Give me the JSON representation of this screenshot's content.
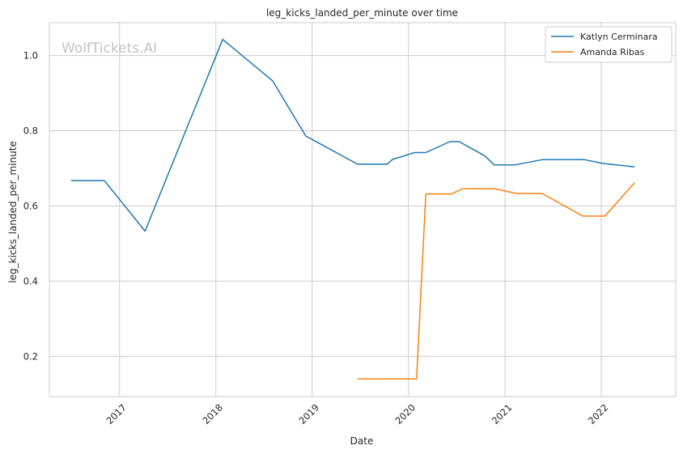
{
  "chart_data": {
    "type": "line",
    "title": "leg_kicks_landed_per_minute over time",
    "xlabel": "Date",
    "ylabel": "leg_kicks_landed_per_minute",
    "watermark": "WolfTickets.AI",
    "x_ticks": [
      "2017",
      "2018",
      "2019",
      "2020",
      "2021",
      "2022"
    ],
    "y_ticks": [
      "0.2",
      "0.4",
      "0.6",
      "0.8",
      "1.0"
    ],
    "xlim": [
      "2016-04-10",
      "2022-10-10"
    ],
    "ylim": [
      0.093,
      1.0875
    ],
    "grid": true,
    "legend_position": "top-right",
    "series": [
      {
        "name": "Katlyn Cerminara",
        "color": "#1f77b4",
        "points": [
          [
            "2016-07-01",
            0.667
          ],
          [
            "2016-11-05",
            0.667
          ],
          [
            "2017-04-08",
            0.533
          ],
          [
            "2018-01-27",
            1.043
          ],
          [
            "2018-08-04",
            0.933
          ],
          [
            "2018-12-08",
            0.786
          ],
          [
            "2019-06-22",
            0.711
          ],
          [
            "2019-10-12",
            0.711
          ],
          [
            "2019-11-02",
            0.724
          ],
          [
            "2020-01-25",
            0.742
          ],
          [
            "2020-03-07",
            0.742
          ],
          [
            "2020-06-06",
            0.771
          ],
          [
            "2020-07-11",
            0.771
          ],
          [
            "2020-10-17",
            0.733
          ],
          [
            "2020-11-21",
            0.709
          ],
          [
            "2021-02-06",
            0.709
          ],
          [
            "2021-05-22",
            0.723
          ],
          [
            "2021-10-30",
            0.723
          ],
          [
            "2022-01-08",
            0.713
          ],
          [
            "2022-05-07",
            0.704
          ]
        ]
      },
      {
        "name": "Amanda Ribas",
        "color": "#ff7f0e",
        "points": [
          [
            "2019-06-22",
            0.14
          ],
          [
            "2020-02-01",
            0.14
          ],
          [
            "2020-03-07",
            0.632
          ],
          [
            "2020-06-13",
            0.632
          ],
          [
            "2020-07-25",
            0.646
          ],
          [
            "2020-11-21",
            0.646
          ],
          [
            "2021-02-13",
            0.633
          ],
          [
            "2021-05-22",
            0.633
          ],
          [
            "2021-10-23",
            0.573
          ],
          [
            "2022-01-15",
            0.573
          ],
          [
            "2022-05-07",
            0.662
          ]
        ]
      }
    ]
  }
}
